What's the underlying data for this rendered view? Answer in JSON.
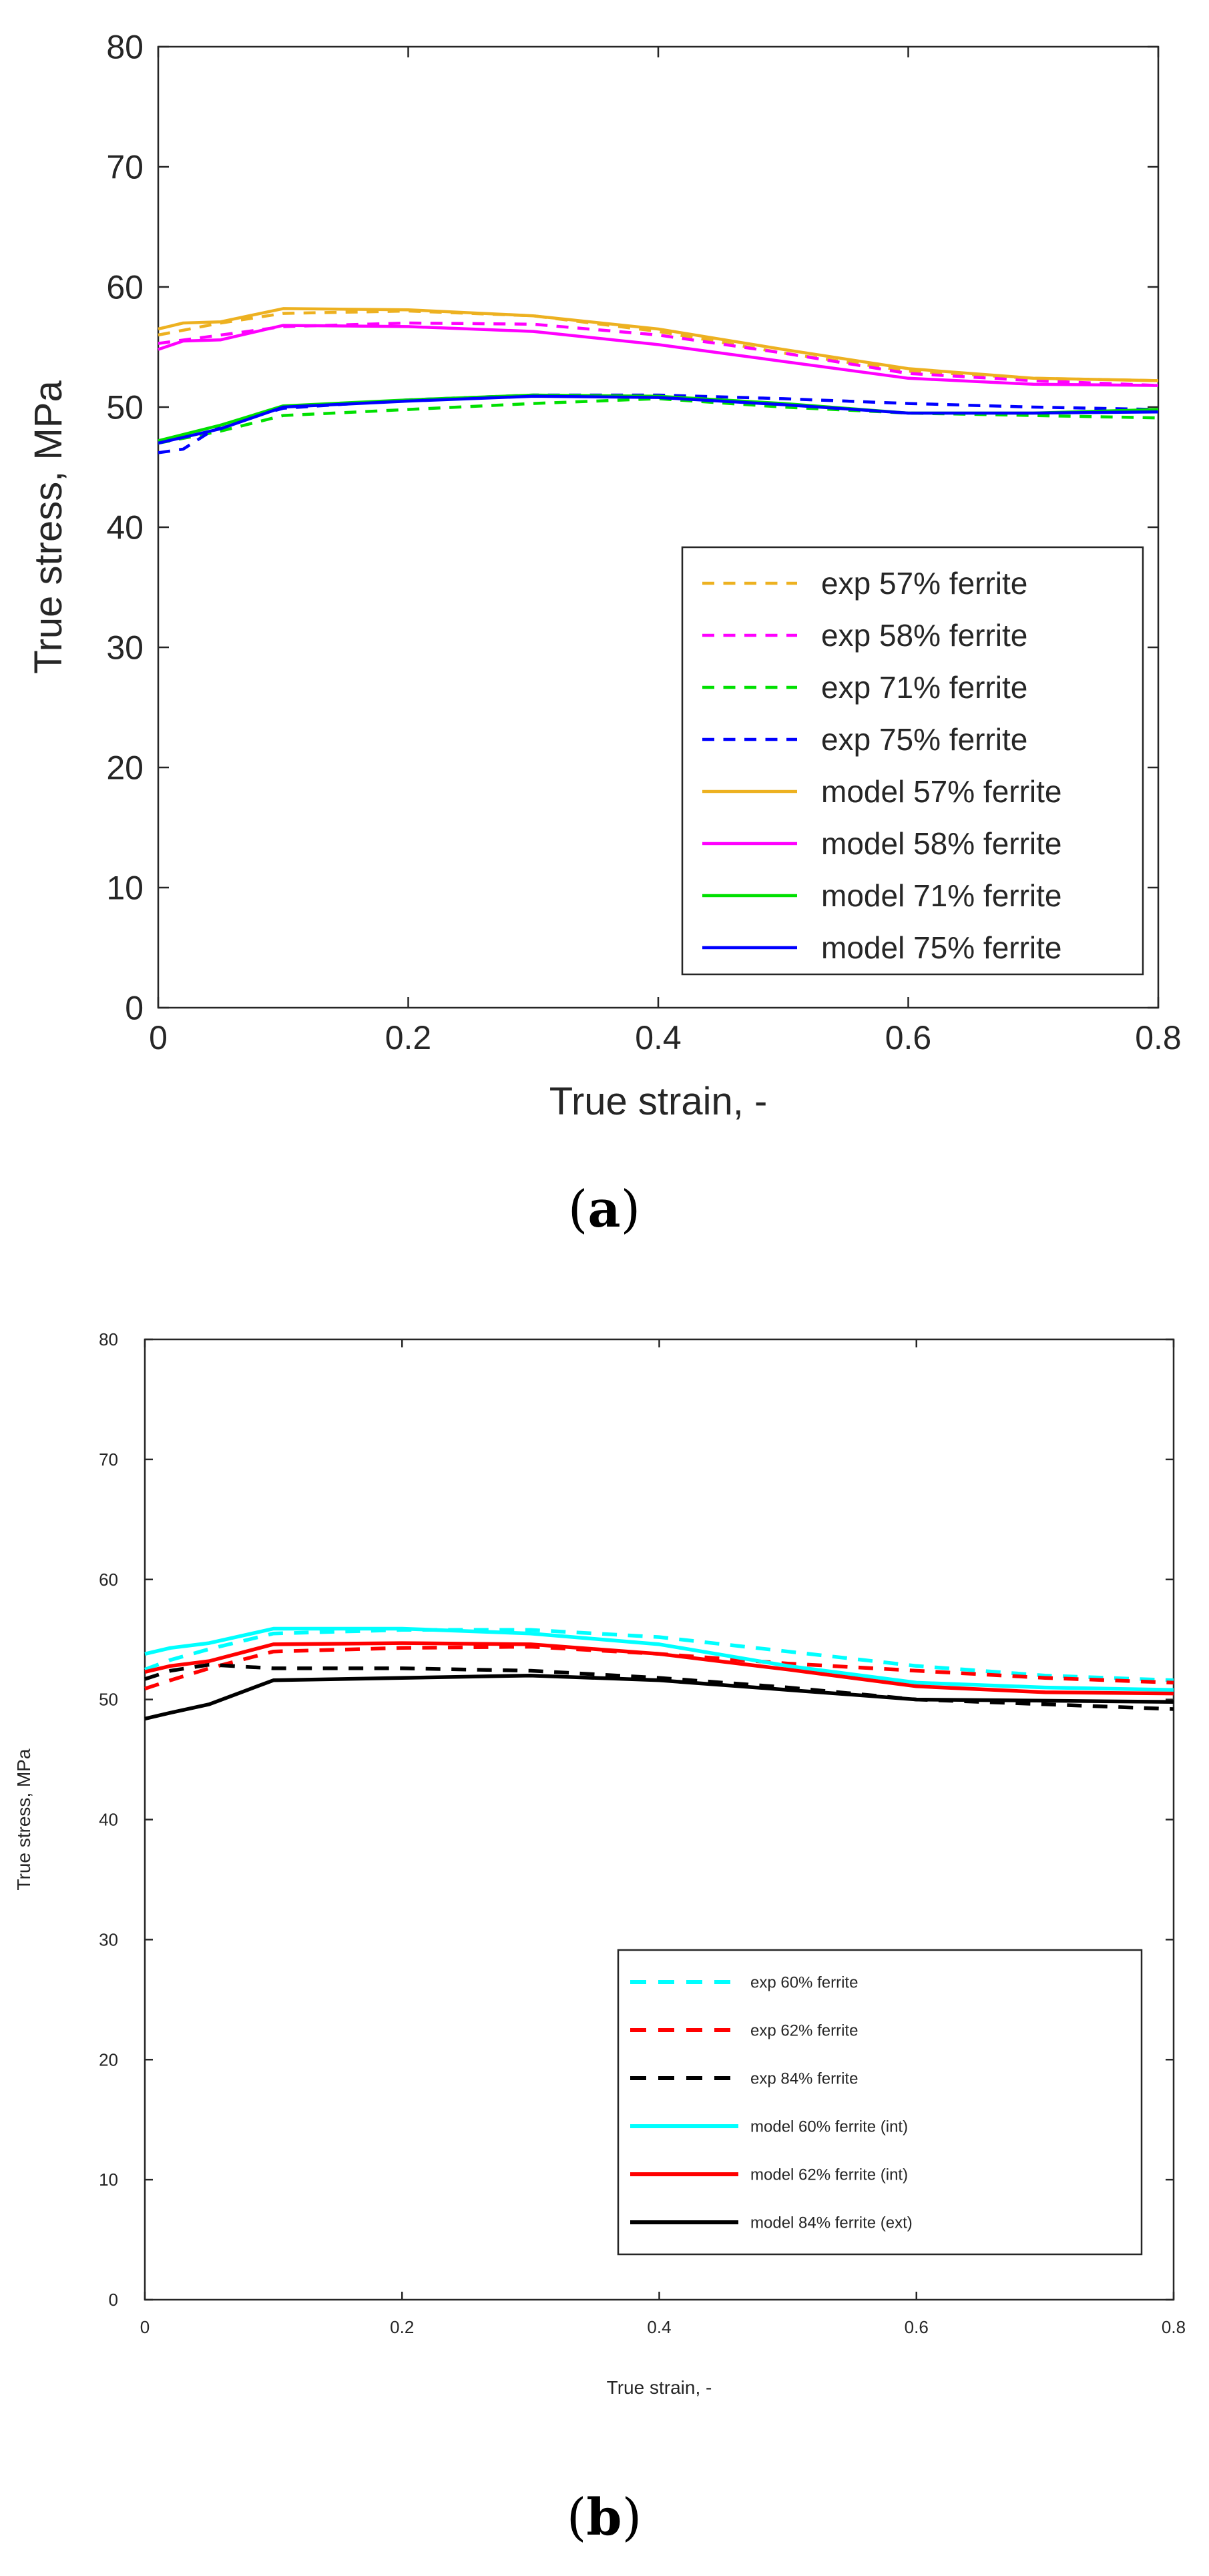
{
  "chart_data": [
    {
      "type": "line",
      "panel": "(a)",
      "panel_letter": "a",
      "xlabel": "True strain, -",
      "ylabel": "True stress, MPa",
      "xlim": [
        0,
        0.8
      ],
      "ylim": [
        0,
        80
      ],
      "xticks": [
        0,
        0.2,
        0.4,
        0.6,
        0.8
      ],
      "xtick_labels": [
        "0",
        "0.2",
        "0.4",
        "0.6",
        "0.8"
      ],
      "yticks": [
        0,
        10,
        20,
        30,
        40,
        50,
        60,
        70,
        80
      ],
      "ytick_labels": [
        "0",
        "10",
        "20",
        "30",
        "40",
        "50",
        "60",
        "70",
        "80"
      ],
      "grid": false,
      "legend_position": "bottom-right",
      "series": [
        {
          "name": "exp 57% ferrite",
          "style": "dashed",
          "color": "#EDB120",
          "x": [
            0,
            0.05,
            0.1,
            0.2,
            0.3,
            0.4,
            0.5,
            0.6,
            0.7,
            0.8
          ],
          "y": [
            56.0,
            57.0,
            57.8,
            58.0,
            57.6,
            56.3,
            54.5,
            53.0,
            52.4,
            52.2
          ]
        },
        {
          "name": "exp 58% ferrite",
          "style": "dashed",
          "color": "#FF00FF",
          "x": [
            0,
            0.05,
            0.1,
            0.2,
            0.3,
            0.4,
            0.5,
            0.6,
            0.7,
            0.8
          ],
          "y": [
            55.3,
            56.0,
            56.7,
            57.0,
            56.9,
            56.0,
            54.5,
            52.8,
            52.2,
            51.8
          ]
        },
        {
          "name": "exp 71% ferrite",
          "style": "dashed",
          "color": "#00E000",
          "x": [
            0,
            0.05,
            0.1,
            0.2,
            0.3,
            0.4,
            0.5,
            0.6,
            0.7,
            0.8
          ],
          "y": [
            47.0,
            48.0,
            49.3,
            49.8,
            50.3,
            50.7,
            50.0,
            49.5,
            49.3,
            49.1
          ]
        },
        {
          "name": "exp 75% ferrite",
          "style": "dashed",
          "color": "#0000FF",
          "x": [
            0,
            0.02,
            0.05,
            0.1,
            0.2,
            0.3,
            0.4,
            0.5,
            0.6,
            0.7,
            0.8
          ],
          "y": [
            46.2,
            46.5,
            48.5,
            49.9,
            50.6,
            51.0,
            51.0,
            50.7,
            50.3,
            50.0,
            49.8
          ]
        },
        {
          "name": "model 57% ferrite",
          "style": "solid",
          "color": "#EDB120",
          "x": [
            0,
            0.02,
            0.05,
            0.1,
            0.2,
            0.3,
            0.4,
            0.5,
            0.6,
            0.7,
            0.8
          ],
          "y": [
            56.5,
            57.0,
            57.1,
            58.2,
            58.1,
            57.6,
            56.5,
            54.8,
            53.2,
            52.4,
            52.2
          ]
        },
        {
          "name": "model 58% ferrite",
          "style": "solid",
          "color": "#FF00FF",
          "x": [
            0,
            0.02,
            0.05,
            0.1,
            0.2,
            0.3,
            0.4,
            0.5,
            0.6,
            0.7,
            0.8
          ],
          "y": [
            54.8,
            55.5,
            55.6,
            56.8,
            56.7,
            56.3,
            55.2,
            53.8,
            52.4,
            51.9,
            51.8
          ]
        },
        {
          "name": "model 71% ferrite",
          "style": "solid",
          "color": "#00E000",
          "x": [
            0,
            0.05,
            0.1,
            0.2,
            0.3,
            0.4,
            0.5,
            0.6,
            0.7,
            0.8
          ],
          "y": [
            47.2,
            48.5,
            50.1,
            50.6,
            51.0,
            50.9,
            50.3,
            49.5,
            49.5,
            49.8
          ]
        },
        {
          "name": "model 75% ferrite",
          "style": "solid",
          "color": "#0000FF",
          "x": [
            0,
            0.05,
            0.1,
            0.2,
            0.3,
            0.4,
            0.5,
            0.6,
            0.7,
            0.8
          ],
          "y": [
            47.0,
            48.2,
            50.0,
            50.5,
            50.9,
            50.8,
            50.2,
            49.5,
            49.5,
            49.6
          ]
        }
      ]
    },
    {
      "type": "line",
      "panel": "(b)",
      "panel_letter": "b",
      "xlabel": "True strain, -",
      "ylabel": "True stress, MPa",
      "xlim": [
        0,
        0.8
      ],
      "ylim": [
        0,
        80
      ],
      "xticks": [
        0,
        0.2,
        0.4,
        0.6,
        0.8
      ],
      "xtick_labels": [
        "0",
        "0.2",
        "0.4",
        "0.6",
        "0.8"
      ],
      "yticks": [
        0,
        10,
        20,
        30,
        40,
        50,
        60,
        70,
        80
      ],
      "ytick_labels": [
        "0",
        "10",
        "20",
        "30",
        "40",
        "50",
        "60",
        "70",
        "80"
      ],
      "grid": false,
      "legend_position": "bottom-right",
      "series": [
        {
          "name": "exp 60% ferrite",
          "style": "dashed",
          "color": "#00FFFF",
          "x": [
            0,
            0.02,
            0.05,
            0.1,
            0.2,
            0.3,
            0.4,
            0.5,
            0.6,
            0.7,
            0.8
          ],
          "y": [
            52.5,
            53.3,
            54.2,
            55.5,
            55.8,
            55.8,
            55.2,
            54.0,
            52.8,
            52.0,
            51.6
          ]
        },
        {
          "name": "exp 62% ferrite",
          "style": "dashed",
          "color": "#FF0000",
          "x": [
            0,
            0.02,
            0.05,
            0.1,
            0.2,
            0.3,
            0.4,
            0.5,
            0.6,
            0.7,
            0.8
          ],
          "y": [
            50.9,
            51.6,
            52.6,
            54.0,
            54.3,
            54.4,
            53.8,
            53.0,
            52.4,
            51.8,
            51.4
          ]
        },
        {
          "name": "exp 84% ferrite",
          "style": "dashed",
          "color": "#000000",
          "x": [
            0,
            0.02,
            0.05,
            0.1,
            0.2,
            0.3,
            0.4,
            0.5,
            0.6,
            0.7,
            0.8
          ],
          "y": [
            51.7,
            52.4,
            52.9,
            52.6,
            52.6,
            52.4,
            51.8,
            51.0,
            50.0,
            49.6,
            49.2
          ]
        },
        {
          "name": "model 60% ferrite (int)",
          "style": "solid",
          "color": "#00FFFF",
          "x": [
            0,
            0.02,
            0.05,
            0.1,
            0.2,
            0.3,
            0.4,
            0.5,
            0.6,
            0.7,
            0.8
          ],
          "y": [
            53.8,
            54.3,
            54.7,
            55.9,
            55.9,
            55.5,
            54.6,
            52.8,
            51.4,
            51.0,
            50.8
          ]
        },
        {
          "name": "model 62% ferrite (int)",
          "style": "solid",
          "color": "#FF0000",
          "x": [
            0,
            0.02,
            0.05,
            0.1,
            0.2,
            0.3,
            0.4,
            0.5,
            0.6,
            0.7,
            0.8
          ],
          "y": [
            52.3,
            52.8,
            53.2,
            54.6,
            54.7,
            54.6,
            53.8,
            52.5,
            51.1,
            50.6,
            50.5
          ]
        },
        {
          "name": "model 84% ferrite (ext)",
          "style": "solid",
          "color": "#000000",
          "x": [
            0,
            0.02,
            0.05,
            0.08,
            0.1,
            0.2,
            0.3,
            0.4,
            0.5,
            0.6,
            0.7,
            0.8
          ],
          "y": [
            48.4,
            48.9,
            49.6,
            50.8,
            51.6,
            51.8,
            52.0,
            51.6,
            50.8,
            50.0,
            49.9,
            49.8
          ]
        }
      ]
    }
  ]
}
